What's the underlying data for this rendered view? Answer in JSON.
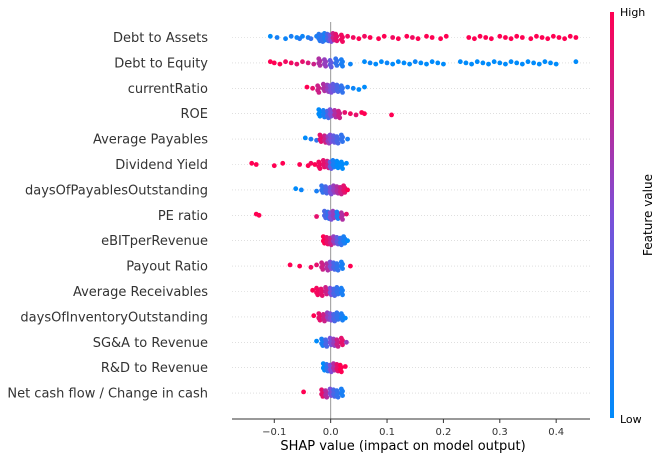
{
  "chart_data": {
    "type": "scatter",
    "subtype": "shap-beeswarm",
    "features": [
      "Debt to Assets",
      "Debt to Equity",
      "currentRatio",
      "ROE",
      "Average Payables",
      "Dividend Yield",
      "daysOfPayablesOutstanding",
      "PE ratio",
      "eBITperRevenue",
      "Payout Ratio",
      "Average Receivables",
      "daysOfInventoryOutstanding",
      "SG&A to Revenue",
      "R&D to Revenue",
      "Net cash flow / Change in cash"
    ],
    "x_ticks": [
      "−0.1",
      "0.0",
      "0.1",
      "0.2",
      "0.3",
      "0.4"
    ],
    "x_tick_values": [
      -0.1,
      0.0,
      0.1,
      0.2,
      0.3,
      0.4
    ],
    "xlim": [
      -0.175,
      0.46
    ],
    "xlabel": "SHAP value (impact on model output)",
    "colorbar": {
      "high_label": "High",
      "low_label": "Low",
      "title": "Feature value"
    },
    "colors": {
      "high": "#ff0052",
      "low": "#008bfb",
      "zero_line": "#999999",
      "grid": "#cccccc"
    },
    "series": [
      {
        "feature": "Debt to Assets",
        "points": [
          {
            "x": -0.107,
            "v": 0.0
          },
          {
            "x": -0.095,
            "v": 0.1
          },
          {
            "x": -0.08,
            "v": 0.05
          },
          {
            "x": -0.07,
            "v": 0.1
          },
          {
            "x": -0.06,
            "v": 0.05
          },
          {
            "x": -0.055,
            "v": 0.15
          },
          {
            "x": -0.05,
            "v": 0.05
          },
          {
            "x": -0.04,
            "v": 0.1
          },
          {
            "x": -0.035,
            "v": 0.2
          },
          {
            "x": -0.025,
            "v": 0.1
          },
          {
            "x": -0.02,
            "v": 0.15
          },
          {
            "x": -0.015,
            "v": 0.2
          },
          {
            "x": -0.01,
            "v": 0.1
          },
          {
            "x": -0.005,
            "v": 0.3
          },
          {
            "x": 0.0,
            "v": 0.5
          },
          {
            "x": 0.005,
            "v": 0.8
          },
          {
            "x": 0.01,
            "v": 0.9
          },
          {
            "x": 0.02,
            "v": 0.95
          },
          {
            "x": 0.03,
            "v": 0.95
          },
          {
            "x": 0.04,
            "v": 0.95
          },
          {
            "x": 0.05,
            "v": 1.0
          },
          {
            "x": 0.06,
            "v": 0.95
          },
          {
            "x": 0.07,
            "v": 1.0
          },
          {
            "x": 0.085,
            "v": 1.0
          },
          {
            "x": 0.095,
            "v": 1.0
          },
          {
            "x": 0.11,
            "v": 0.95
          },
          {
            "x": 0.12,
            "v": 1.0
          },
          {
            "x": 0.135,
            "v": 1.0
          },
          {
            "x": 0.145,
            "v": 0.95
          },
          {
            "x": 0.155,
            "v": 1.0
          },
          {
            "x": 0.17,
            "v": 1.0
          },
          {
            "x": 0.18,
            "v": 1.0
          },
          {
            "x": 0.195,
            "v": 1.0
          },
          {
            "x": 0.205,
            "v": 1.0
          },
          {
            "x": 0.245,
            "v": 1.0
          },
          {
            "x": 0.255,
            "v": 1.0
          },
          {
            "x": 0.265,
            "v": 1.0
          },
          {
            "x": 0.275,
            "v": 1.0
          },
          {
            "x": 0.285,
            "v": 1.0
          },
          {
            "x": 0.3,
            "v": 1.0
          },
          {
            "x": 0.31,
            "v": 1.0
          },
          {
            "x": 0.32,
            "v": 1.0
          },
          {
            "x": 0.33,
            "v": 1.0
          },
          {
            "x": 0.34,
            "v": 1.0
          },
          {
            "x": 0.355,
            "v": 1.0
          },
          {
            "x": 0.365,
            "v": 1.0
          },
          {
            "x": 0.375,
            "v": 1.0
          },
          {
            "x": 0.385,
            "v": 1.0
          },
          {
            "x": 0.395,
            "v": 1.0
          },
          {
            "x": 0.405,
            "v": 1.0
          },
          {
            "x": 0.415,
            "v": 1.0
          },
          {
            "x": 0.425,
            "v": 1.0
          },
          {
            "x": 0.435,
            "v": 1.0
          }
        ]
      },
      {
        "feature": "Debt to Equity",
        "points": [
          {
            "x": -0.107,
            "v": 1.0
          },
          {
            "x": -0.1,
            "v": 1.0
          },
          {
            "x": -0.09,
            "v": 1.0
          },
          {
            "x": -0.08,
            "v": 0.95
          },
          {
            "x": -0.07,
            "v": 0.95
          },
          {
            "x": -0.06,
            "v": 0.9
          },
          {
            "x": -0.05,
            "v": 0.9
          },
          {
            "x": -0.04,
            "v": 0.85
          },
          {
            "x": -0.03,
            "v": 0.8
          },
          {
            "x": -0.02,
            "v": 0.7
          },
          {
            "x": -0.01,
            "v": 0.6
          },
          {
            "x": 0.0,
            "v": 0.4
          },
          {
            "x": 0.01,
            "v": 0.2
          },
          {
            "x": 0.02,
            "v": 0.1
          },
          {
            "x": 0.035,
            "v": 0.05
          },
          {
            "x": 0.06,
            "v": 0.0
          },
          {
            "x": 0.07,
            "v": 0.05
          },
          {
            "x": 0.08,
            "v": 0.0
          },
          {
            "x": 0.09,
            "v": 0.0
          },
          {
            "x": 0.1,
            "v": 0.05
          },
          {
            "x": 0.11,
            "v": 0.0
          },
          {
            "x": 0.12,
            "v": 0.0
          },
          {
            "x": 0.13,
            "v": 0.0
          },
          {
            "x": 0.14,
            "v": 0.0
          },
          {
            "x": 0.15,
            "v": 0.05
          },
          {
            "x": 0.16,
            "v": 0.0
          },
          {
            "x": 0.17,
            "v": 0.0
          },
          {
            "x": 0.18,
            "v": 0.0
          },
          {
            "x": 0.19,
            "v": 0.0
          },
          {
            "x": 0.2,
            "v": 0.0
          },
          {
            "x": 0.23,
            "v": 0.0
          },
          {
            "x": 0.24,
            "v": 0.0
          },
          {
            "x": 0.25,
            "v": 0.0
          },
          {
            "x": 0.26,
            "v": 0.0
          },
          {
            "x": 0.27,
            "v": 0.0
          },
          {
            "x": 0.28,
            "v": 0.0
          },
          {
            "x": 0.29,
            "v": 0.0
          },
          {
            "x": 0.3,
            "v": 0.0
          },
          {
            "x": 0.31,
            "v": 0.0
          },
          {
            "x": 0.32,
            "v": 0.0
          },
          {
            "x": 0.33,
            "v": 0.0
          },
          {
            "x": 0.34,
            "v": 0.0
          },
          {
            "x": 0.35,
            "v": 0.0
          },
          {
            "x": 0.36,
            "v": 0.0
          },
          {
            "x": 0.37,
            "v": 0.0
          },
          {
            "x": 0.38,
            "v": 0.0
          },
          {
            "x": 0.39,
            "v": 0.0
          },
          {
            "x": 0.4,
            "v": 0.0
          },
          {
            "x": 0.435,
            "v": 0.0
          }
        ]
      },
      {
        "feature": "currentRatio",
        "points": [
          {
            "x": -0.042,
            "v": 1.0
          },
          {
            "x": -0.032,
            "v": 0.9
          },
          {
            "x": -0.022,
            "v": 0.8
          },
          {
            "x": -0.012,
            "v": 0.7
          },
          {
            "x": -0.005,
            "v": 0.6
          },
          {
            "x": 0.0,
            "v": 0.5
          },
          {
            "x": 0.005,
            "v": 0.4
          },
          {
            "x": 0.012,
            "v": 0.3
          },
          {
            "x": 0.02,
            "v": 0.2
          },
          {
            "x": 0.03,
            "v": 0.1
          },
          {
            "x": 0.04,
            "v": 0.05
          },
          {
            "x": 0.05,
            "v": 0.0
          },
          {
            "x": 0.06,
            "v": 0.0
          }
        ]
      },
      {
        "feature": "ROE",
        "points": [
          {
            "x": -0.02,
            "v": 0.0
          },
          {
            "x": -0.012,
            "v": 0.1
          },
          {
            "x": -0.005,
            "v": 0.3
          },
          {
            "x": 0.0,
            "v": 0.5
          },
          {
            "x": 0.008,
            "v": 0.7
          },
          {
            "x": 0.015,
            "v": 0.8
          },
          {
            "x": 0.025,
            "v": 0.9
          },
          {
            "x": 0.035,
            "v": 0.95
          },
          {
            "x": 0.045,
            "v": 0.9
          },
          {
            "x": 0.055,
            "v": 1.0
          },
          {
            "x": 0.06,
            "v": 1.0
          },
          {
            "x": 0.108,
            "v": 1.0
          }
        ]
      },
      {
        "feature": "Average Payables",
        "points": [
          {
            "x": -0.045,
            "v": 0.0
          },
          {
            "x": -0.035,
            "v": 0.1
          },
          {
            "x": -0.025,
            "v": 0.2
          },
          {
            "x": -0.018,
            "v": 0.9
          },
          {
            "x": -0.01,
            "v": 0.8
          },
          {
            "x": -0.004,
            "v": 0.6
          },
          {
            "x": 0.0,
            "v": 0.5
          },
          {
            "x": 0.006,
            "v": 0.4
          },
          {
            "x": 0.012,
            "v": 0.3
          },
          {
            "x": 0.02,
            "v": 0.2
          },
          {
            "x": 0.03,
            "v": 0.1
          }
        ]
      },
      {
        "feature": "Dividend Yield",
        "points": [
          {
            "x": -0.14,
            "v": 1.0
          },
          {
            "x": -0.132,
            "v": 1.0
          },
          {
            "x": -0.1,
            "v": 1.0
          },
          {
            "x": -0.085,
            "v": 1.0
          },
          {
            "x": -0.055,
            "v": 1.0
          },
          {
            "x": -0.04,
            "v": 1.0
          },
          {
            "x": -0.035,
            "v": 0.95
          },
          {
            "x": -0.028,
            "v": 1.0
          },
          {
            "x": -0.02,
            "v": 0.95
          },
          {
            "x": -0.012,
            "v": 0.9
          },
          {
            "x": -0.005,
            "v": 0.8
          },
          {
            "x": 0.0,
            "v": 0.4
          },
          {
            "x": 0.005,
            "v": 0.1
          },
          {
            "x": 0.012,
            "v": 0.0
          },
          {
            "x": 0.02,
            "v": 0.0
          },
          {
            "x": 0.028,
            "v": 0.0
          }
        ]
      },
      {
        "feature": "daysOfPayablesOutstanding",
        "points": [
          {
            "x": -0.062,
            "v": 0.0
          },
          {
            "x": -0.052,
            "v": 0.05
          },
          {
            "x": -0.025,
            "v": 0.1
          },
          {
            "x": -0.015,
            "v": 0.2
          },
          {
            "x": -0.008,
            "v": 0.3
          },
          {
            "x": 0.0,
            "v": 0.5
          },
          {
            "x": 0.006,
            "v": 0.6
          },
          {
            "x": 0.012,
            "v": 0.7
          },
          {
            "x": 0.018,
            "v": 0.8
          },
          {
            "x": 0.024,
            "v": 0.9
          },
          {
            "x": 0.03,
            "v": 1.0
          }
        ]
      },
      {
        "feature": "PE ratio",
        "points": [
          {
            "x": -0.132,
            "v": 1.0
          },
          {
            "x": -0.127,
            "v": 1.0
          },
          {
            "x": -0.025,
            "v": 0.9
          },
          {
            "x": -0.01,
            "v": 0.3
          },
          {
            "x": -0.004,
            "v": 0.2
          },
          {
            "x": 0.0,
            "v": 0.5
          },
          {
            "x": 0.005,
            "v": 0.6
          },
          {
            "x": 0.012,
            "v": 0.1
          },
          {
            "x": 0.02,
            "v": 0.7
          },
          {
            "x": 0.028,
            "v": 0.9
          }
        ]
      },
      {
        "feature": "eBITperRevenue",
        "points": [
          {
            "x": -0.012,
            "v": 1.0
          },
          {
            "x": -0.006,
            "v": 0.9
          },
          {
            "x": 0.0,
            "v": 0.8
          },
          {
            "x": 0.006,
            "v": 0.6
          },
          {
            "x": 0.012,
            "v": 0.4
          },
          {
            "x": 0.018,
            "v": 0.2
          },
          {
            "x": 0.024,
            "v": 0.1
          },
          {
            "x": 0.03,
            "v": 0.0
          }
        ]
      },
      {
        "feature": "Payout Ratio",
        "points": [
          {
            "x": -0.072,
            "v": 1.0
          },
          {
            "x": -0.055,
            "v": 1.0
          },
          {
            "x": -0.035,
            "v": 0.95
          },
          {
            "x": -0.025,
            "v": 0.9
          },
          {
            "x": -0.015,
            "v": 0.8
          },
          {
            "x": -0.006,
            "v": 0.7
          },
          {
            "x": 0.0,
            "v": 0.5
          },
          {
            "x": 0.006,
            "v": 0.3
          },
          {
            "x": 0.012,
            "v": 0.2
          },
          {
            "x": 0.02,
            "v": 0.1
          },
          {
            "x": 0.035,
            "v": 1.0
          }
        ]
      },
      {
        "feature": "Average Receivables",
        "points": [
          {
            "x": -0.032,
            "v": 1.0
          },
          {
            "x": -0.024,
            "v": 0.95
          },
          {
            "x": -0.016,
            "v": 0.9
          },
          {
            "x": -0.008,
            "v": 0.8
          },
          {
            "x": 0.0,
            "v": 0.5
          },
          {
            "x": 0.006,
            "v": 0.3
          },
          {
            "x": 0.012,
            "v": 0.2
          },
          {
            "x": 0.02,
            "v": 0.1
          }
        ]
      },
      {
        "feature": "daysOfInventoryOutstanding",
        "points": [
          {
            "x": -0.03,
            "v": 1.0
          },
          {
            "x": -0.02,
            "v": 0.9
          },
          {
            "x": -0.012,
            "v": 0.8
          },
          {
            "x": -0.005,
            "v": 0.6
          },
          {
            "x": 0.0,
            "v": 0.5
          },
          {
            "x": 0.006,
            "v": 0.3
          },
          {
            "x": 0.012,
            "v": 0.2
          },
          {
            "x": 0.02,
            "v": 0.1
          },
          {
            "x": 0.026,
            "v": 0.0
          }
        ]
      },
      {
        "feature": "SG&A to Revenue",
        "points": [
          {
            "x": -0.025,
            "v": 0.0
          },
          {
            "x": -0.015,
            "v": 0.1
          },
          {
            "x": -0.008,
            "v": 0.3
          },
          {
            "x": 0.0,
            "v": 0.5
          },
          {
            "x": 0.006,
            "v": 0.6
          },
          {
            "x": 0.012,
            "v": 0.8
          },
          {
            "x": 0.02,
            "v": 0.9
          },
          {
            "x": 0.028,
            "v": 0.6
          }
        ]
      },
      {
        "feature": "R&D to Revenue",
        "points": [
          {
            "x": -0.012,
            "v": 0.0
          },
          {
            "x": -0.006,
            "v": 0.2
          },
          {
            "x": 0.0,
            "v": 0.5
          },
          {
            "x": 0.006,
            "v": 0.7
          },
          {
            "x": 0.012,
            "v": 0.9
          },
          {
            "x": 0.018,
            "v": 1.0
          },
          {
            "x": 0.026,
            "v": 1.0
          }
        ]
      },
      {
        "feature": "Net cash flow / Change in cash",
        "points": [
          {
            "x": -0.048,
            "v": 1.0
          },
          {
            "x": -0.015,
            "v": 0.9
          },
          {
            "x": -0.008,
            "v": 0.7
          },
          {
            "x": 0.0,
            "v": 0.5
          },
          {
            "x": 0.006,
            "v": 0.3
          },
          {
            "x": 0.012,
            "v": 0.2
          },
          {
            "x": 0.02,
            "v": 0.1
          }
        ]
      }
    ]
  }
}
